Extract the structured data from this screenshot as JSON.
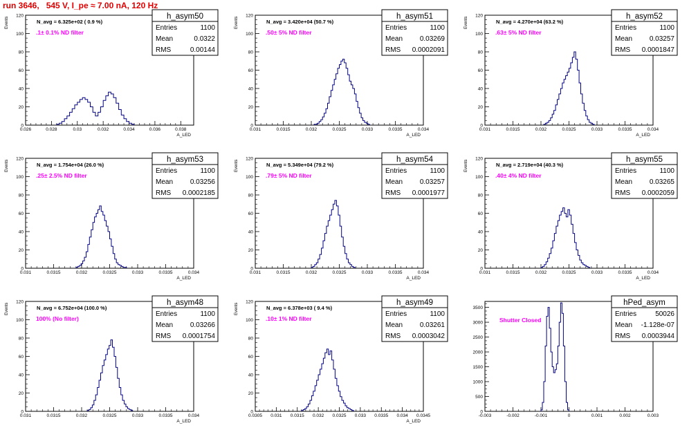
{
  "title": "run 3646,   545 V, I_pe ≈ 7.00 nA, 120 Hz",
  "colors": {
    "hist_line": "#000080",
    "filter_label": "#ff00ff",
    "title": "#e00000",
    "frame": "#000000"
  },
  "chart_data": [
    {
      "type": "bar",
      "name": "h_asym50",
      "navg": "N_avg = 6.325e+02 ( 0.9 %)",
      "filter": ".1± 0.1% ND filter",
      "stats": {
        "entries_label": "Entries",
        "entries": "1100",
        "mean_label": "Mean",
        "mean": "0.0322",
        "rms_label": "RMS",
        "rms": "0.00144"
      },
      "ylabel": "Events",
      "xlabel": "A_LED",
      "xlim": [
        0.026,
        0.039
      ],
      "ylim": [
        0,
        120
      ],
      "xticks": [
        0.026,
        0.028,
        0.03,
        0.032,
        0.034,
        0.036,
        0.038
      ],
      "xtick_labels": [
        "0.026",
        "0.028",
        "0.03",
        "0.032",
        "0.034",
        "0.036",
        "0.038"
      ],
      "yticks": [
        0,
        20,
        40,
        60,
        80,
        100,
        120
      ],
      "ytick_labels": [
        "0",
        "20",
        "40",
        "60",
        "80",
        "100",
        "120"
      ],
      "bin_start": 0.0284,
      "bin_width": 0.0002,
      "values": [
        1,
        2,
        4,
        7,
        10,
        14,
        18,
        22,
        25,
        28,
        30,
        28,
        25,
        20,
        14,
        10,
        14,
        20,
        27,
        32,
        36,
        34,
        30,
        24,
        17,
        11,
        7,
        4,
        2,
        1
      ]
    },
    {
      "type": "bar",
      "name": "h_asym51",
      "navg": "N_avg = 3.420e+04 (50.7 %)",
      "filter": ".50± 5% ND filter",
      "stats": {
        "entries_label": "Entries",
        "entries": "1100",
        "mean_label": "Mean",
        "mean": "0.03269",
        "rms_label": "RMS",
        "rms": "0.0002091"
      },
      "ylabel": "Events",
      "xlabel": "A_LED",
      "xlim": [
        0.031,
        0.034
      ],
      "ylim": [
        0,
        120
      ],
      "xticks": [
        0.031,
        0.0315,
        0.032,
        0.0325,
        0.033,
        0.0335,
        0.034
      ],
      "xtick_labels": [
        "0.031",
        "0.0315",
        "0.032",
        "0.0325",
        "0.033",
        "0.0335",
        "0.034"
      ],
      "yticks": [
        0,
        20,
        40,
        60,
        80,
        100,
        120
      ],
      "ytick_labels": [
        "0",
        "20",
        "40",
        "60",
        "80",
        "100",
        "120"
      ],
      "bin_start": 0.03205,
      "bin_width": 3e-05,
      "values": [
        1,
        1,
        2,
        4,
        6,
        9,
        13,
        18,
        24,
        31,
        38,
        44,
        50,
        56,
        62,
        66,
        70,
        72,
        68,
        62,
        55,
        48,
        44,
        40,
        34,
        26,
        19,
        13,
        8,
        5,
        3,
        2,
        1
      ]
    },
    {
      "type": "bar",
      "name": "h_asym52",
      "navg": "N_avg = 4.270e+04 (63.2 %)",
      "filter": ".63± 5% ND filter",
      "stats": {
        "entries_label": "Entries",
        "entries": "1100",
        "mean_label": "Mean",
        "mean": "0.03257",
        "rms_label": "RMS",
        "rms": "0.0001847"
      },
      "ylabel": "Events",
      "xlabel": "A_LED",
      "xlim": [
        0.031,
        0.034
      ],
      "ylim": [
        0,
        120
      ],
      "xticks": [
        0.031,
        0.0315,
        0.032,
        0.0325,
        0.033,
        0.0335,
        0.034
      ],
      "xtick_labels": [
        "0.031",
        "0.0315",
        "0.032",
        "0.0325",
        "0.033",
        "0.0335",
        "0.034"
      ],
      "yticks": [
        0,
        20,
        40,
        60,
        80,
        100,
        120
      ],
      "ytick_labels": [
        "0",
        "20",
        "40",
        "60",
        "80",
        "100",
        "120"
      ],
      "bin_start": 0.03205,
      "bin_width": 3e-05,
      "values": [
        1,
        2,
        3,
        5,
        8,
        12,
        16,
        22,
        28,
        34,
        40,
        46,
        50,
        54,
        58,
        62,
        68,
        74,
        80,
        72,
        60,
        46,
        34,
        24,
        16,
        10,
        6,
        3,
        2,
        1
      ]
    },
    {
      "type": "bar",
      "name": "h_asym53",
      "navg": "N_avg = 1.754e+04 (26.0 %)",
      "filter": ".25± 2.5% ND filter",
      "stats": {
        "entries_label": "Entries",
        "entries": "1100",
        "mean_label": "Mean",
        "mean": "0.03256",
        "rms_label": "RMS",
        "rms": "0.0002185"
      },
      "ylabel": "Events",
      "xlabel": "A_LED",
      "xlim": [
        0.031,
        0.034
      ],
      "ylim": [
        0,
        120
      ],
      "xticks": [
        0.031,
        0.0315,
        0.032,
        0.0325,
        0.033,
        0.0335,
        0.034
      ],
      "xtick_labels": [
        "0.031",
        "0.0315",
        "0.032",
        "0.0325",
        "0.033",
        "0.0335",
        "0.034"
      ],
      "yticks": [
        0,
        20,
        40,
        60,
        80,
        100,
        120
      ],
      "ytick_labels": [
        "0",
        "20",
        "40",
        "60",
        "80",
        "100",
        "120"
      ],
      "bin_start": 0.0319,
      "bin_width": 3e-05,
      "values": [
        1,
        2,
        3,
        5,
        8,
        12,
        18,
        26,
        34,
        42,
        50,
        56,
        60,
        64,
        68,
        62,
        58,
        52,
        46,
        40,
        32,
        24,
        16,
        10,
        6,
        4,
        3,
        2,
        1,
        1
      ]
    },
    {
      "type": "bar",
      "name": "h_asym54",
      "navg": "N_avg = 5.349e+04 (79.2 %)",
      "filter": ".79± 5% ND filter",
      "stats": {
        "entries_label": "Entries",
        "entries": "1100",
        "mean_label": "Mean",
        "mean": "0.03257",
        "rms_label": "RMS",
        "rms": "0.0001977"
      },
      "ylabel": "Events",
      "xlabel": "A_LED",
      "xlim": [
        0.031,
        0.034
      ],
      "ylim": [
        0,
        120
      ],
      "xticks": [
        0.031,
        0.0315,
        0.032,
        0.0325,
        0.033,
        0.0335,
        0.034
      ],
      "xtick_labels": [
        "0.031",
        "0.0315",
        "0.032",
        "0.0325",
        "0.033",
        "0.0335",
        "0.034"
      ],
      "yticks": [
        0,
        20,
        40,
        60,
        80,
        100,
        120
      ],
      "ytick_labels": [
        "0",
        "20",
        "40",
        "60",
        "80",
        "100",
        "120"
      ],
      "bin_start": 0.032,
      "bin_width": 3e-05,
      "values": [
        1,
        2,
        4,
        6,
        10,
        15,
        22,
        30,
        38,
        46,
        52,
        58,
        64,
        70,
        74,
        68,
        58,
        46,
        34,
        24,
        16,
        10,
        6,
        4,
        2,
        1
      ]
    },
    {
      "type": "bar",
      "name": "h_asym55",
      "navg": "N_avg = 2.719e+04 (40.3 %)",
      "filter": ".40± 4% ND filter",
      "stats": {
        "entries_label": "Entries",
        "entries": "1100",
        "mean_label": "Mean",
        "mean": "0.03265",
        "rms_label": "RMS",
        "rms": "0.0002059"
      },
      "ylabel": "Events",
      "xlabel": "A_LED",
      "xlim": [
        0.031,
        0.034
      ],
      "ylim": [
        0,
        120
      ],
      "xticks": [
        0.031,
        0.0315,
        0.032,
        0.0325,
        0.033,
        0.0335,
        0.034
      ],
      "xtick_labels": [
        "0.031",
        "0.0315",
        "0.032",
        "0.0325",
        "0.033",
        "0.0335",
        "0.034"
      ],
      "yticks": [
        0,
        20,
        40,
        60,
        80,
        100,
        120
      ],
      "ytick_labels": [
        "0",
        "20",
        "40",
        "60",
        "80",
        "100",
        "120"
      ],
      "bin_start": 0.032,
      "bin_width": 3e-05,
      "values": [
        1,
        2,
        4,
        7,
        11,
        16,
        22,
        30,
        38,
        46,
        52,
        58,
        62,
        66,
        60,
        56,
        64,
        58,
        48,
        38,
        28,
        20,
        14,
        9,
        6,
        4,
        3,
        2,
        1
      ]
    },
    {
      "type": "bar",
      "name": "h_asym48",
      "navg": "N_avg = 6.752e+04 (100.0 %)",
      "filter": "100% (No filter)",
      "stats": {
        "entries_label": "Entries",
        "entries": "1100",
        "mean_label": "Mean",
        "mean": "0.03266",
        "rms_label": "RMS",
        "rms": "0.0001754"
      },
      "ylabel": "Events",
      "xlabel": "A_LED",
      "xlim": [
        0.031,
        0.034
      ],
      "ylim": [
        0,
        120
      ],
      "xticks": [
        0.031,
        0.0315,
        0.032,
        0.0325,
        0.033,
        0.0335,
        0.034
      ],
      "xtick_labels": [
        "0.031",
        "0.0315",
        "0.032",
        "0.0325",
        "0.033",
        "0.0335",
        "0.034"
      ],
      "yticks": [
        0,
        20,
        40,
        60,
        80,
        100,
        120
      ],
      "ytick_labels": [
        "0",
        "20",
        "40",
        "60",
        "80",
        "100",
        "120"
      ],
      "bin_start": 0.0321,
      "bin_width": 3e-05,
      "values": [
        1,
        2,
        4,
        7,
        12,
        18,
        26,
        34,
        42,
        50,
        56,
        62,
        68,
        72,
        78,
        70,
        60,
        48,
        36,
        26,
        18,
        12,
        8,
        5,
        3,
        2,
        1
      ]
    },
    {
      "type": "bar",
      "name": "h_asym49",
      "navg": "N_avg = 6.378e+03 ( 9.4 %)",
      "filter": ".10± 1% ND filter",
      "stats": {
        "entries_label": "Entries",
        "entries": "1100",
        "mean_label": "Mean",
        "mean": "0.03261",
        "rms_label": "RMS",
        "rms": "0.0003042"
      },
      "ylabel": "Events",
      "xlabel": "A_LED",
      "xlim": [
        0.0305,
        0.0345
      ],
      "ylim": [
        0,
        120
      ],
      "xticks": [
        0.0305,
        0.031,
        0.0315,
        0.032,
        0.0325,
        0.033,
        0.0335,
        0.034,
        0.0345
      ],
      "xtick_labels": [
        "0.0305",
        "0.031",
        "0.0315",
        "0.032",
        "0.0325",
        "0.033",
        "0.0335",
        "0.034",
        "0.0345"
      ],
      "yticks": [
        0,
        20,
        40,
        60,
        80,
        100,
        120
      ],
      "ytick_labels": [
        "0",
        "20",
        "40",
        "60",
        "80",
        "100",
        "120"
      ],
      "bin_start": 0.0316,
      "bin_width": 4e-05,
      "values": [
        1,
        2,
        3,
        5,
        8,
        12,
        17,
        22,
        28,
        34,
        40,
        46,
        52,
        58,
        64,
        68,
        62,
        66,
        56,
        46,
        36,
        28,
        22,
        16,
        12,
        9,
        6,
        4,
        3,
        2,
        1
      ]
    },
    {
      "type": "bar",
      "name": "hPed_asym",
      "navg": "",
      "filter": "Shutter Closed",
      "stats": {
        "entries_label": "Entries",
        "entries": "50026",
        "mean_label": "Mean",
        "mean": "-1.128e-07",
        "rms_label": "RMS",
        "rms": "0.0003944"
      },
      "ylabel": "",
      "xlabel": "",
      "xlim": [
        -0.003,
        0.003
      ],
      "ylim": [
        0,
        3700
      ],
      "xticks": [
        -0.003,
        -0.002,
        -0.001,
        0,
        0.001,
        0.002,
        0.003
      ],
      "xtick_labels": [
        "-0.003",
        "-0.002",
        "-0.001",
        "0",
        "0.001",
        "0.002",
        "0.003"
      ],
      "yticks": [
        0,
        500,
        1000,
        1500,
        2000,
        2500,
        3000,
        3500
      ],
      "ytick_labels": [
        "0",
        "500",
        "1000",
        "1500",
        "2000",
        "2500",
        "3000",
        "3500"
      ],
      "bin_start": -0.001,
      "bin_width": 5e-05,
      "values": [
        50,
        300,
        1000,
        2200,
        3200,
        3500,
        2800,
        2000,
        1500,
        1300,
        1400,
        1600,
        2200,
        3000,
        3650,
        3300,
        2200,
        1000,
        300,
        50
      ]
    }
  ]
}
